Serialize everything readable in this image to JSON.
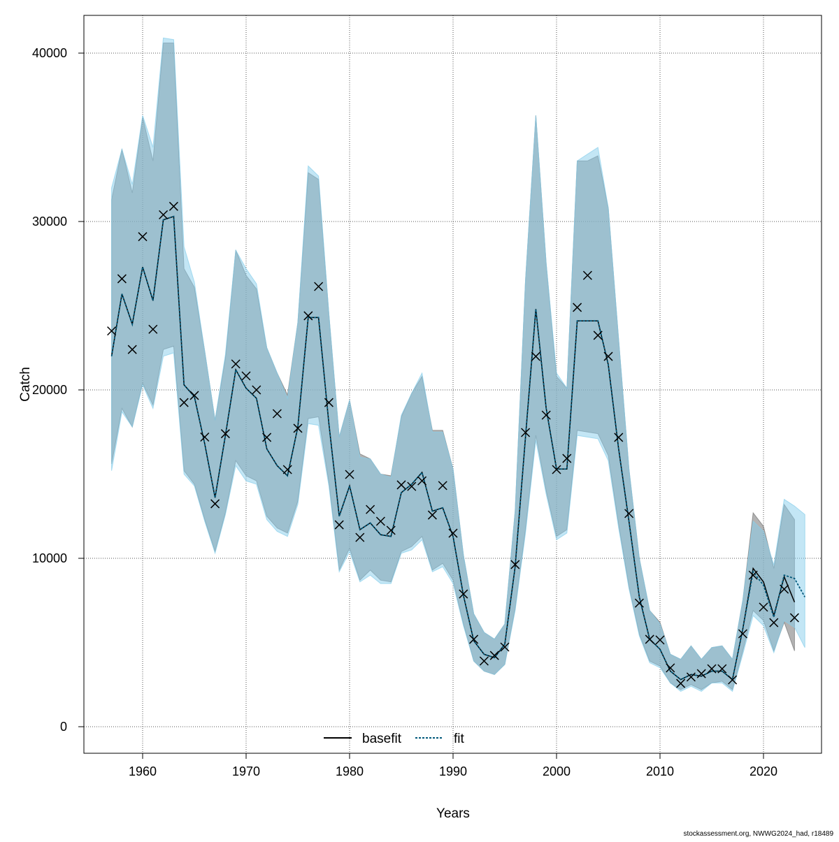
{
  "chart_data": {
    "type": "line",
    "xlabel": "Years",
    "ylabel": "Catch",
    "xlim": [
      1952.5,
      2025.5
    ],
    "ylim": [
      -1500,
      42200
    ],
    "xticks": [
      "1960",
      "1970",
      "1980",
      "1990",
      "2000",
      "2010",
      "2020"
    ],
    "yticks": [
      "0",
      "10000",
      "20000",
      "30000",
      "40000"
    ],
    "grid": true,
    "legend": {
      "placement": "bottom-center",
      "entries": [
        "basefit",
        "fit"
      ]
    },
    "footer": "stockassessment.org, NWWG2024_had, r18489",
    "colors": {
      "fit_band": "#87CEEB",
      "basefit_band": "#808080",
      "fit_line": "#00587A",
      "basefit_line": "#000000"
    },
    "observed": {
      "x": [
        1957,
        1958,
        1959,
        1960,
        1961,
        1962,
        1963,
        1964,
        1965,
        1966,
        1967,
        1968,
        1969,
        1970,
        1971,
        1972,
        1973,
        1974,
        1975,
        1976,
        1977,
        1978,
        1979,
        1980,
        1981,
        1982,
        1983,
        1984,
        1985,
        1986,
        1987,
        1988,
        1989,
        1990,
        1991,
        1992,
        1993,
        1994,
        1995,
        1996,
        1997,
        1998,
        1999,
        2000,
        2001,
        2002,
        2003,
        2004,
        2005,
        2006,
        2007,
        2008,
        2009,
        2010,
        2011,
        2012,
        2013,
        2014,
        2015,
        2016,
        2017,
        2018,
        2019,
        2020,
        2021,
        2022,
        2023
      ],
      "y": [
        23500,
        26600,
        22400,
        29100,
        23600,
        30400,
        30900,
        19250,
        19670,
        17200,
        13240,
        17400,
        21540,
        20830,
        20000,
        17180,
        18590,
        15270,
        17720,
        24400,
        26140,
        19250,
        11990,
        14980,
        11240,
        12900,
        12200,
        11660,
        14360,
        14270,
        14600,
        12570,
        14320,
        11490,
        7880,
        5190,
        3900,
        4230,
        4730,
        9630,
        17470,
        21990,
        18500,
        15270,
        15930,
        24900,
        26800,
        23240,
        21990,
        17180,
        12660,
        7340,
        5190,
        5150,
        3490,
        2570,
        2950,
        3150,
        3440,
        3440,
        2780,
        5520,
        9000,
        7100,
        6180,
        8170,
        6470
      ]
    },
    "series": [
      {
        "name": "fit",
        "x_start": 1957,
        "y": [
          22000,
          25700,
          23900,
          27300,
          25300,
          30100,
          30300,
          20300,
          19600,
          16800,
          13600,
          17300,
          21200,
          20100,
          19500,
          16500,
          15500,
          14900,
          17800,
          24300,
          24300,
          18000,
          12500,
          14300,
          11700,
          12100,
          11400,
          11300,
          13900,
          14400,
          15100,
          12800,
          13000,
          11300,
          7800,
          5100,
          4300,
          4100,
          4900,
          9500,
          17200,
          24800,
          18900,
          15300,
          15300,
          24100,
          24100,
          24100,
          21500,
          16500,
          12200,
          7700,
          5200,
          4600,
          3300,
          2800,
          3100,
          3000,
          3300,
          3300,
          2800,
          5800,
          9200,
          8400,
          6500,
          9000,
          8800,
          7700
        ],
        "upper": [
          32000,
          34300,
          32200,
          36300,
          34400,
          40900,
          40800,
          28500,
          26400,
          22300,
          18200,
          22100,
          28300,
          27200,
          26300,
          22500,
          21000,
          19500,
          24000,
          33300,
          32700,
          24500,
          17200,
          19400,
          16000,
          15900,
          15000,
          14800,
          18500,
          19800,
          21000,
          17500,
          17500,
          15300,
          10200,
          6700,
          5600,
          5200,
          6100,
          12800,
          26500,
          36300,
          27500,
          21000,
          20100,
          33600,
          34000,
          34400,
          30800,
          23000,
          15300,
          10000,
          6900,
          6100,
          4300,
          4000,
          4800,
          4000,
          4700,
          4800,
          4000,
          7500,
          12200,
          11600,
          9600,
          13500,
          13100,
          12600
        ],
        "lower": [
          15200,
          18700,
          17800,
          20300,
          18900,
          22000,
          22200,
          15000,
          14300,
          12200,
          10300,
          12600,
          15500,
          14600,
          14400,
          12300,
          11600,
          11300,
          13200,
          18000,
          17900,
          14300,
          9200,
          10400,
          8600,
          9000,
          8500,
          8500,
          10300,
          10500,
          11100,
          9200,
          9500,
          8500,
          6000,
          3900,
          3300,
          3100,
          3700,
          6900,
          11500,
          17000,
          13800,
          11100,
          11500,
          17300,
          17200,
          17100,
          15800,
          11800,
          8200,
          5400,
          3800,
          3500,
          2600,
          2100,
          2400,
          2100,
          2600,
          2600,
          2100,
          4300,
          6600,
          6000,
          4400,
          6300,
          5900,
          4700
        ]
      },
      {
        "name": "basefit",
        "x_start": 1957,
        "y": [
          22000,
          25700,
          23900,
          27300,
          25300,
          30100,
          30300,
          20300,
          19600,
          16800,
          13600,
          17300,
          21200,
          20100,
          19500,
          16500,
          15500,
          14900,
          17800,
          24300,
          24300,
          18000,
          12500,
          14300,
          11700,
          12100,
          11400,
          11300,
          13900,
          14400,
          15100,
          12800,
          13000,
          11300,
          7800,
          5100,
          4300,
          4100,
          4900,
          9500,
          17200,
          24800,
          18900,
          15300,
          15300,
          24100,
          24100,
          24100,
          21500,
          16500,
          12200,
          7700,
          5200,
          4600,
          3300,
          2800,
          3100,
          3000,
          3300,
          3300,
          2800,
          5800,
          9400,
          8600,
          6600,
          8900,
          7400
        ],
        "upper": [
          31300,
          34300,
          31700,
          36200,
          33600,
          40600,
          40600,
          27200,
          26100,
          22300,
          18200,
          21900,
          28300,
          26800,
          26000,
          22500,
          21000,
          19700,
          24000,
          32900,
          32500,
          24500,
          17200,
          19400,
          16200,
          15900,
          15000,
          14900,
          18400,
          19800,
          20800,
          17600,
          17600,
          15300,
          10200,
          6700,
          5600,
          5200,
          6100,
          12800,
          26500,
          36300,
          27500,
          20800,
          20100,
          33600,
          33600,
          33900,
          30800,
          23000,
          15300,
          10000,
          6900,
          6200,
          4300,
          4000,
          4800,
          4000,
          4700,
          4800,
          4000,
          7500,
          12700,
          11900,
          9400,
          13200,
          12300
        ],
        "lower": [
          15600,
          18900,
          17800,
          20400,
          19100,
          22400,
          22600,
          15200,
          14400,
          12300,
          10400,
          12700,
          15800,
          14900,
          14600,
          12500,
          11800,
          11500,
          13400,
          18300,
          18400,
          14500,
          9300,
          10600,
          8700,
          9300,
          8700,
          8600,
          10400,
          10700,
          11300,
          9300,
          9700,
          8700,
          6100,
          3900,
          3300,
          3100,
          3700,
          7000,
          11700,
          17300,
          14000,
          11300,
          11700,
          17600,
          17500,
          17400,
          16100,
          12000,
          8300,
          5500,
          3900,
          3600,
          2600,
          2200,
          2500,
          2200,
          2600,
          2700,
          2200,
          4500,
          6900,
          6300,
          4500,
          6200,
          4500
        ]
      }
    ]
  }
}
